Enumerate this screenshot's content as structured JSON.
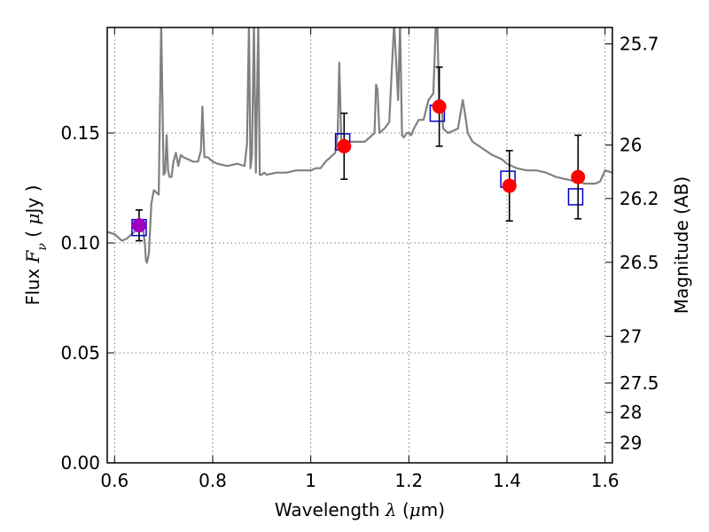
{
  "chart_data": {
    "type": "scatter",
    "xlabel_parts": [
      "Wavelength  ",
      "λ",
      " (",
      "μ",
      "m)"
    ],
    "ylabel_parts": [
      "Flux  ",
      "F",
      "ν",
      "  ( ",
      "μ",
      "Jy )"
    ],
    "y2label": "Magnitude (AB)",
    "xlim": [
      0.585,
      1.615
    ],
    "ylim": [
      0.0,
      0.198
    ],
    "grid": true,
    "x_ticks": [
      0.6,
      0.8,
      1.0,
      1.2,
      1.4,
      1.6
    ],
    "x_tick_labels": [
      "0.6",
      "0.8",
      "1",
      "1.2",
      "1.4",
      "1.6"
    ],
    "y_ticks": [
      0.0,
      0.05,
      0.1,
      0.15
    ],
    "y_tick_labels": [
      "0.00",
      "0.05",
      "0.10",
      "0.15"
    ],
    "mag_ticks": [
      {
        "label": "25.7",
        "mag": 25.7
      },
      {
        "label": "26",
        "mag": 26.0
      },
      {
        "label": "26.2",
        "mag": 26.2
      },
      {
        "label": "26.5",
        "mag": 26.5
      },
      {
        "label": "27",
        "mag": 27.0
      },
      {
        "label": "27.5",
        "mag": 27.5
      },
      {
        "label": "28",
        "mag": 28.0
      },
      {
        "label": "29",
        "mag": 29.0
      }
    ],
    "colors": {
      "model": "#808080",
      "observed": "#ff0000",
      "model_photometry": "#0000cc",
      "first_point": "#a000c0",
      "errorbar": "#000000",
      "grid": "#555555"
    },
    "model_spectrum": {
      "x": [
        0.585,
        0.6,
        0.615,
        0.625,
        0.635,
        0.645,
        0.652,
        0.658,
        0.662,
        0.664,
        0.666,
        0.67,
        0.675,
        0.68,
        0.69,
        0.695,
        0.7,
        0.703,
        0.706,
        0.709,
        0.712,
        0.716,
        0.72,
        0.725,
        0.73,
        0.735,
        0.74,
        0.75,
        0.76,
        0.77,
        0.776,
        0.779,
        0.783,
        0.79,
        0.8,
        0.81,
        0.83,
        0.85,
        0.865,
        0.87,
        0.874,
        0.877,
        0.88,
        0.884,
        0.888,
        0.893,
        0.896,
        0.9,
        0.905,
        0.91,
        0.93,
        0.95,
        0.97,
        0.99,
        1.0,
        1.01,
        1.02,
        1.03,
        1.04,
        1.05,
        1.055,
        1.058,
        1.062,
        1.065,
        1.07,
        1.08,
        1.09,
        1.1,
        1.11,
        1.12,
        1.13,
        1.133,
        1.136,
        1.14,
        1.15,
        1.16,
        1.17,
        1.178,
        1.182,
        1.186,
        1.19,
        1.195,
        1.2,
        1.205,
        1.21,
        1.22,
        1.23,
        1.24,
        1.25,
        1.255,
        1.258,
        1.262,
        1.266,
        1.27,
        1.28,
        1.3,
        1.31,
        1.315,
        1.32,
        1.33,
        1.35,
        1.37,
        1.39,
        1.4,
        1.42,
        1.44,
        1.46,
        1.48,
        1.5,
        1.52,
        1.54,
        1.56,
        1.58,
        1.59,
        1.6,
        1.615
      ],
      "y": [
        0.105,
        0.104,
        0.101,
        0.102,
        0.104,
        0.106,
        0.108,
        0.107,
        0.099,
        0.092,
        0.091,
        0.095,
        0.118,
        0.124,
        0.122,
        0.2,
        0.131,
        0.132,
        0.149,
        0.133,
        0.13,
        0.13,
        0.137,
        0.141,
        0.135,
        0.14,
        0.139,
        0.138,
        0.137,
        0.137,
        0.142,
        0.162,
        0.139,
        0.139,
        0.137,
        0.136,
        0.135,
        0.136,
        0.135,
        0.145,
        0.2,
        0.134,
        0.14,
        0.2,
        0.132,
        0.2,
        0.131,
        0.131,
        0.132,
        0.131,
        0.132,
        0.132,
        0.133,
        0.133,
        0.133,
        0.134,
        0.134,
        0.137,
        0.139,
        0.141,
        0.15,
        0.182,
        0.148,
        0.145,
        0.145,
        0.146,
        0.146,
        0.146,
        0.146,
        0.148,
        0.15,
        0.172,
        0.17,
        0.15,
        0.152,
        0.155,
        0.2,
        0.165,
        0.2,
        0.149,
        0.148,
        0.15,
        0.15,
        0.149,
        0.152,
        0.156,
        0.156,
        0.165,
        0.168,
        0.2,
        0.2,
        0.16,
        0.165,
        0.152,
        0.15,
        0.152,
        0.165,
        0.158,
        0.15,
        0.146,
        0.143,
        0.14,
        0.138,
        0.136,
        0.134,
        0.133,
        0.133,
        0.132,
        0.13,
        0.129,
        0.128,
        0.127,
        0.127,
        0.128,
        0.133,
        0.132
      ]
    },
    "observed": [
      {
        "x": 0.65,
        "y": 0.108,
        "yerr_low": 0.007,
        "yerr_high": 0.007
      },
      {
        "x": 1.068,
        "y": 0.144,
        "yerr_low": 0.015,
        "yerr_high": 0.015
      },
      {
        "x": 1.262,
        "y": 0.162,
        "yerr_low": 0.018,
        "yerr_high": 0.018
      },
      {
        "x": 1.405,
        "y": 0.126,
        "yerr_low": 0.016,
        "yerr_high": 0.016
      },
      {
        "x": 1.545,
        "y": 0.13,
        "yerr_low": 0.019,
        "yerr_high": 0.019
      }
    ],
    "model_photometry": [
      {
        "x": 0.65,
        "y": 0.107
      },
      {
        "x": 1.065,
        "y": 0.146
      },
      {
        "x": 1.258,
        "y": 0.159
      },
      {
        "x": 1.402,
        "y": 0.129
      },
      {
        "x": 1.54,
        "y": 0.121
      }
    ]
  }
}
